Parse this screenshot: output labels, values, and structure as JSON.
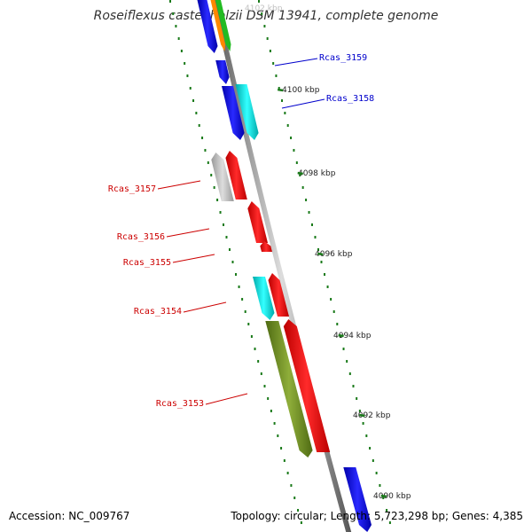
{
  "title": "Roseiflexus castenholzii DSM 13941, complete genome",
  "footer": {
    "accession": "Accession: NC_009767",
    "summary": "Topology: circular; Length: 5,723,298 bp; Genes: 4,385"
  },
  "top_tick_label": "4102 kbp",
  "ticks": [
    {
      "label": "4100 kbp"
    },
    {
      "label": "4098 kbp"
    },
    {
      "label": "4096 kbp"
    },
    {
      "label": "4094 kbp"
    },
    {
      "label": "4092 kbp"
    },
    {
      "label": "4090 kbp"
    }
  ],
  "gene_labels_forward": [
    {
      "name": "Rcas_3159",
      "color": "#0000cc"
    },
    {
      "name": "Rcas_3158",
      "color": "#0000cc"
    }
  ],
  "gene_labels_reverse": [
    {
      "name": "Rcas_3157",
      "color": "#cc0000"
    },
    {
      "name": "Rcas_3156",
      "color": "#cc0000"
    },
    {
      "name": "Rcas_3155",
      "color": "#cc0000"
    },
    {
      "name": "Rcas_3154",
      "color": "#cc0000"
    },
    {
      "name": "Rcas_3153",
      "color": "#cc0000"
    }
  ],
  "colors": {
    "backbone": "#888888",
    "forward_gene": "#0000ee",
    "reverse_gene": "#ee0000",
    "rna": "#00cccc",
    "pseudo": "#bbbbbb",
    "olive": "#6b8e23",
    "orange": "#ff8800",
    "green": "#22bb22",
    "tick": "#1a7a1a"
  }
}
